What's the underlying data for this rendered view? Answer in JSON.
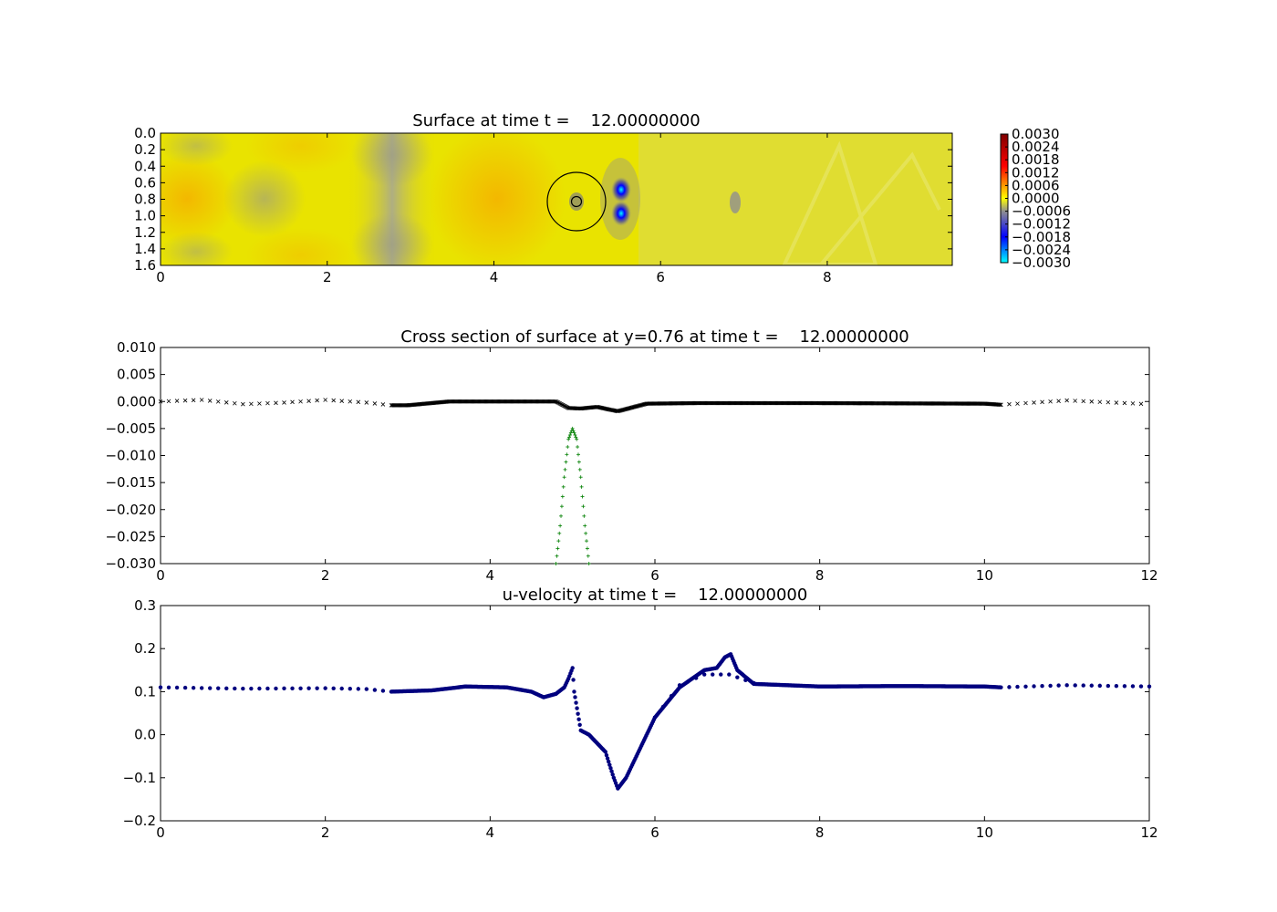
{
  "colors": {
    "surface_black": "#000000",
    "bottom_green": "#007f00",
    "velocity_navy": "#00007f",
    "colormap": [
      "#00ffff",
      "#0000ff",
      "#909090",
      "#ffff00",
      "#ff0000",
      "#7f0000"
    ]
  },
  "chart_data": [
    {
      "type": "heatmap",
      "title": "Surface at time t =    12.00000000",
      "xlabel": "",
      "ylabel": "",
      "xlim": [
        0,
        9.5
      ],
      "ylim": [
        0,
        1.6
      ],
      "x_ticks": [
        "0",
        "2",
        "4",
        "6",
        "8"
      ],
      "y_ticks": [
        "0.0",
        "0.2",
        "0.4",
        "0.6",
        "0.8",
        "1.0",
        "1.2",
        "1.4",
        "1.6"
      ],
      "colorbar": {
        "range": [
          -0.003,
          0.003
        ],
        "ticks": [
          "0.0030",
          "0.0024",
          "0.0018",
          "0.0012",
          "0.0006",
          "0.0000",
          "−0.0006",
          "−0.0012",
          "−0.0018",
          "−0.0024",
          "−0.0030"
        ]
      },
      "features": {
        "circle_center": [
          5.0,
          0.76
        ],
        "circle_radius": 0.35,
        "small_circle_radius": 0.06,
        "minima": [
          {
            "x": 5.55,
            "y": 0.91,
            "value": -0.003
          },
          {
            "x": 5.55,
            "y": 0.61,
            "value": -0.003
          }
        ]
      }
    },
    {
      "type": "scatter",
      "title": "Cross section of surface at y=0.76 at time t =    12.00000000",
      "xlabel": "",
      "ylabel": "",
      "xlim": [
        0,
        12
      ],
      "ylim": [
        -0.03,
        0.01
      ],
      "x_ticks": [
        "0",
        "2",
        "4",
        "6",
        "8",
        "10",
        "12"
      ],
      "y_ticks": [
        "0.010",
        "0.005",
        "0.000",
        "−0.005",
        "−0.010",
        "−0.015",
        "−0.020",
        "−0.025",
        "−0.030"
      ],
      "series": [
        {
          "marker": "x",
          "color": "#000000",
          "x": [
            0.0,
            0.5,
            1.0,
            1.5,
            2.0,
            2.5,
            2.8,
            3.0,
            3.5,
            4.0,
            4.5,
            4.8,
            4.95,
            5.1,
            5.3,
            5.45,
            5.55,
            5.7,
            5.9,
            6.5,
            8.0,
            10.0,
            10.2,
            11.0,
            12.0
          ],
          "y": [
            0.0,
            0.0003,
            -0.0005,
            -0.0002,
            0.0003,
            -0.0002,
            -0.0007,
            -0.0007,
            0.0,
            0.0,
            0.0,
            0.0,
            -0.0012,
            -0.0013,
            -0.001,
            -0.0015,
            -0.0018,
            -0.0012,
            -0.0004,
            -0.0003,
            -0.0003,
            -0.0004,
            -0.0006,
            0.0002,
            -0.0005
          ]
        },
        {
          "marker": "+",
          "color": "#007f00",
          "x": [
            4.8,
            4.85,
            4.9,
            4.95,
            5.0,
            5.05,
            5.1,
            5.15,
            5.2
          ],
          "y": [
            -0.03,
            -0.023,
            -0.014,
            -0.007,
            -0.005,
            -0.007,
            -0.014,
            -0.023,
            -0.03
          ]
        }
      ]
    },
    {
      "type": "scatter",
      "title": "u-velocity at time t =    12.00000000",
      "xlabel": "",
      "ylabel": "",
      "xlim": [
        0,
        12
      ],
      "ylim": [
        -0.2,
        0.3
      ],
      "x_ticks": [
        "0",
        "2",
        "4",
        "6",
        "8",
        "10",
        "12"
      ],
      "y_ticks": [
        "0.3",
        "0.2",
        "0.1",
        "0.0",
        "−0.1",
        "−0.2"
      ],
      "series": [
        {
          "marker": "o",
          "color": "#00007f",
          "x": [
            0.0,
            1.0,
            2.0,
            2.5,
            2.8,
            3.3,
            3.7,
            4.2,
            4.5,
            4.65,
            4.8,
            4.9,
            4.95,
            5.0,
            5.02,
            5.1,
            5.2,
            5.4,
            5.5,
            5.55,
            5.65,
            5.8,
            6.0,
            6.3,
            6.6,
            6.75,
            6.85,
            6.92,
            7.0,
            7.2,
            8.0,
            9.0,
            10.0,
            10.2,
            11.0,
            12.0
          ],
          "y": [
            0.11,
            0.107,
            0.108,
            0.106,
            0.1,
            0.103,
            0.112,
            0.11,
            0.1,
            0.087,
            0.095,
            0.11,
            0.13,
            0.155,
            0.1,
            0.01,
            0.0,
            -0.04,
            -0.1,
            -0.125,
            -0.1,
            -0.04,
            0.04,
            0.11,
            0.15,
            0.155,
            0.18,
            0.187,
            0.15,
            0.118,
            0.112,
            0.113,
            0.112,
            0.11,
            0.115,
            0.112
          ]
        },
        {
          "marker": "o",
          "color": "#00007f",
          "x": [
            6.0,
            6.3,
            6.6,
            6.9,
            7.2
          ],
          "y": [
            0.04,
            0.115,
            0.14,
            0.14,
            0.12
          ]
        }
      ]
    }
  ]
}
